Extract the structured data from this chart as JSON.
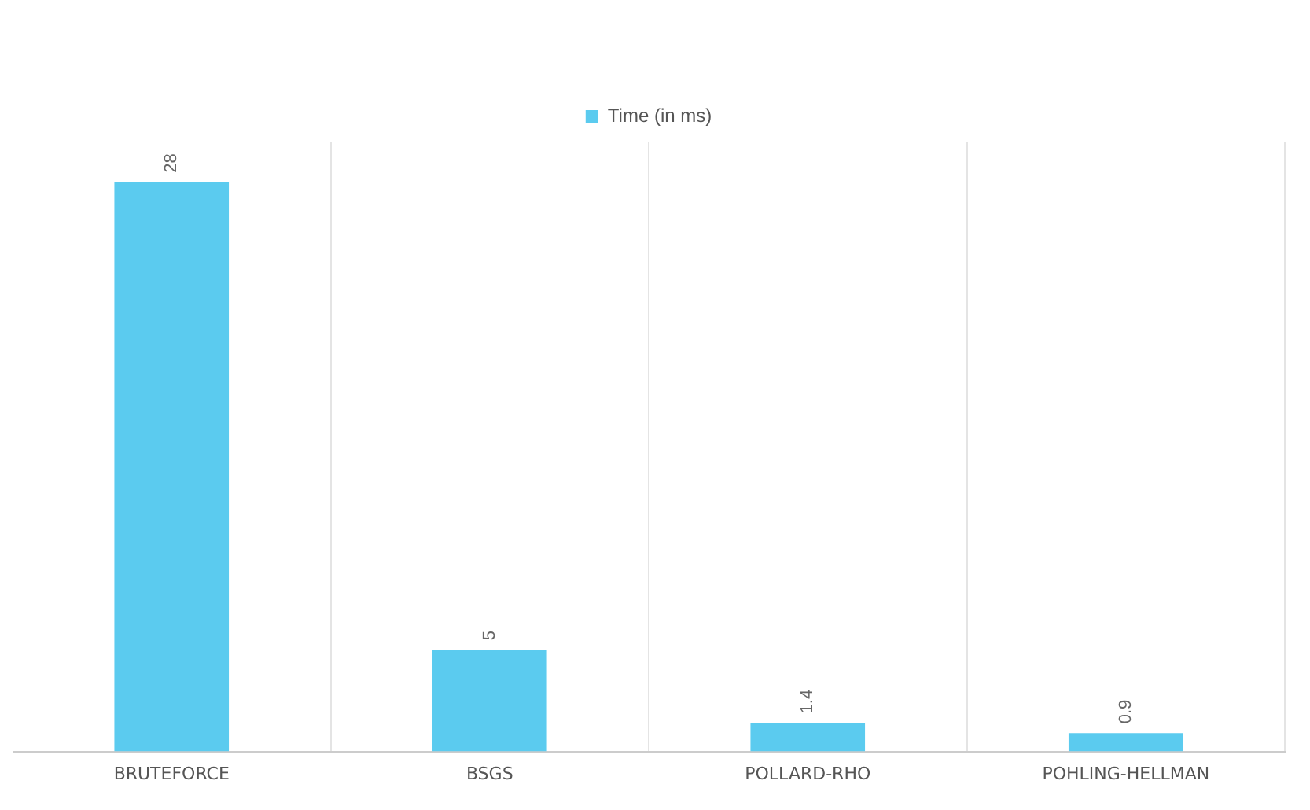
{
  "chart_data": {
    "type": "bar",
    "categories": [
      "BRUTEFORCE",
      "BSGS",
      "POLLARD-RHO",
      "POHLING-HELLMAN"
    ],
    "series": [
      {
        "name": "Time (in ms)",
        "color": "#5bcbef",
        "values": [
          28,
          5,
          1.4,
          0.9
        ]
      }
    ],
    "data_labels": true,
    "legend": "top",
    "grid": "x",
    "tick_labels": "x"
  }
}
